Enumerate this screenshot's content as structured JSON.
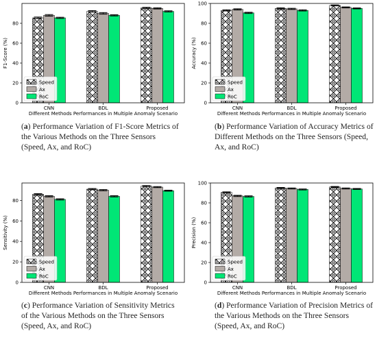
{
  "colors": {
    "speed": "#ffffff",
    "ax": "#b3aba6",
    "roc": "#00e676"
  },
  "chart_data": [
    {
      "type": "bar",
      "categories": [
        "CNN",
        "BDL",
        "Proposed"
      ],
      "series": [
        {
          "name": "Speed",
          "values": [
            85.5,
            92.0,
            95.5
          ],
          "errors": [
            0.8,
            0.8,
            0.6
          ]
        },
        {
          "name": "Ax",
          "values": [
            88.0,
            90.0,
            95.0
          ],
          "errors": [
            0.8,
            0.8,
            0.6
          ]
        },
        {
          "name": "RoC",
          "values": [
            85.5,
            88.0,
            92.0
          ],
          "errors": [
            0.6,
            0.6,
            0.6
          ]
        }
      ],
      "xlabel": "Different Methods Performances in Multiple Anomaly Scenario",
      "ylabel": "F1-Score (%)",
      "ylim": [
        0,
        100
      ],
      "yticks": [
        0,
        20,
        40,
        60,
        80
      ],
      "legend": "bottom-left",
      "grid": false,
      "caption_label": "a",
      "caption_text": "Performance Variation of F1-Score Metrics of the Various Methods on the Three Sensors (Speed, Ax, and RoC)"
    },
    {
      "type": "bar",
      "categories": [
        "CNN",
        "BDL",
        "Proposed"
      ],
      "series": [
        {
          "name": "Speed",
          "values": [
            93.0,
            95.0,
            98.0
          ],
          "errors": [
            0.6,
            0.6,
            0.5
          ]
        },
        {
          "name": "Ax",
          "values": [
            94.0,
            94.5,
            96.0
          ],
          "errors": [
            0.6,
            0.6,
            0.5
          ]
        },
        {
          "name": "RoC",
          "values": [
            90.5,
            93.0,
            95.0
          ],
          "errors": [
            0.6,
            0.6,
            0.5
          ]
        }
      ],
      "xlabel": "Different Methods Performances in Multiple Anomaly Scenario",
      "ylabel": "Accuracy (%)",
      "ylim": [
        0,
        100
      ],
      "yticks": [
        0,
        20,
        40,
        60,
        80,
        100
      ],
      "legend": "bottom-left",
      "grid": false,
      "caption_label": "b",
      "caption_text": "Performance Variation of Accuracy Metrics of Different Methods on the Three Sensors (Speed, Ax, and RoC)"
    },
    {
      "type": "bar",
      "categories": [
        "CNN",
        "BDL",
        "Proposed"
      ],
      "series": [
        {
          "name": "Speed",
          "values": [
            86.0,
            91.0,
            94.0
          ],
          "errors": [
            0.6,
            0.6,
            0.5
          ]
        },
        {
          "name": "Ax",
          "values": [
            84.0,
            90.0,
            93.0
          ],
          "errors": [
            0.6,
            0.6,
            0.5
          ]
        },
        {
          "name": "RoC",
          "values": [
            81.0,
            84.0,
            89.5
          ],
          "errors": [
            0.6,
            0.6,
            0.5
          ]
        }
      ],
      "xlabel": "Different Methods Performances in Multiple Anomaly Scenario",
      "ylabel": "Sensitivity (%)",
      "ylim": [
        0,
        97
      ],
      "yticks": [
        0,
        20,
        40,
        60,
        80
      ],
      "legend": "bottom-left",
      "grid": false,
      "caption_label": "c",
      "caption_text": "Performance Variation of Sensitivity Metrics of the Various Methods on the Three Sensors (Speed, Ax, and RoC)"
    },
    {
      "type": "bar",
      "categories": [
        "CNN",
        "BDL",
        "Proposed"
      ],
      "series": [
        {
          "name": "Speed",
          "values": [
            90.5,
            95.0,
            96.0
          ],
          "errors": [
            0.6,
            0.5,
            0.5
          ]
        },
        {
          "name": "Ax",
          "values": [
            87.0,
            94.5,
            94.5
          ],
          "errors": [
            0.6,
            0.5,
            0.5
          ]
        },
        {
          "name": "RoC",
          "values": [
            86.5,
            93.5,
            94.0
          ],
          "errors": [
            0.6,
            0.5,
            0.5
          ]
        }
      ],
      "xlabel": "Different Methods Performances in Multiple Anomaly Scenario",
      "ylabel": "Precision (%)",
      "ylim": [
        0,
        100
      ],
      "yticks": [
        0,
        20,
        40,
        60,
        80,
        100
      ],
      "legend": "bottom-left",
      "grid": false,
      "caption_label": "d",
      "caption_text": "Performance Variation of Precision Metrics of the Various Methods on the Three Sensors (Speed, Ax, and RoC)"
    }
  ]
}
